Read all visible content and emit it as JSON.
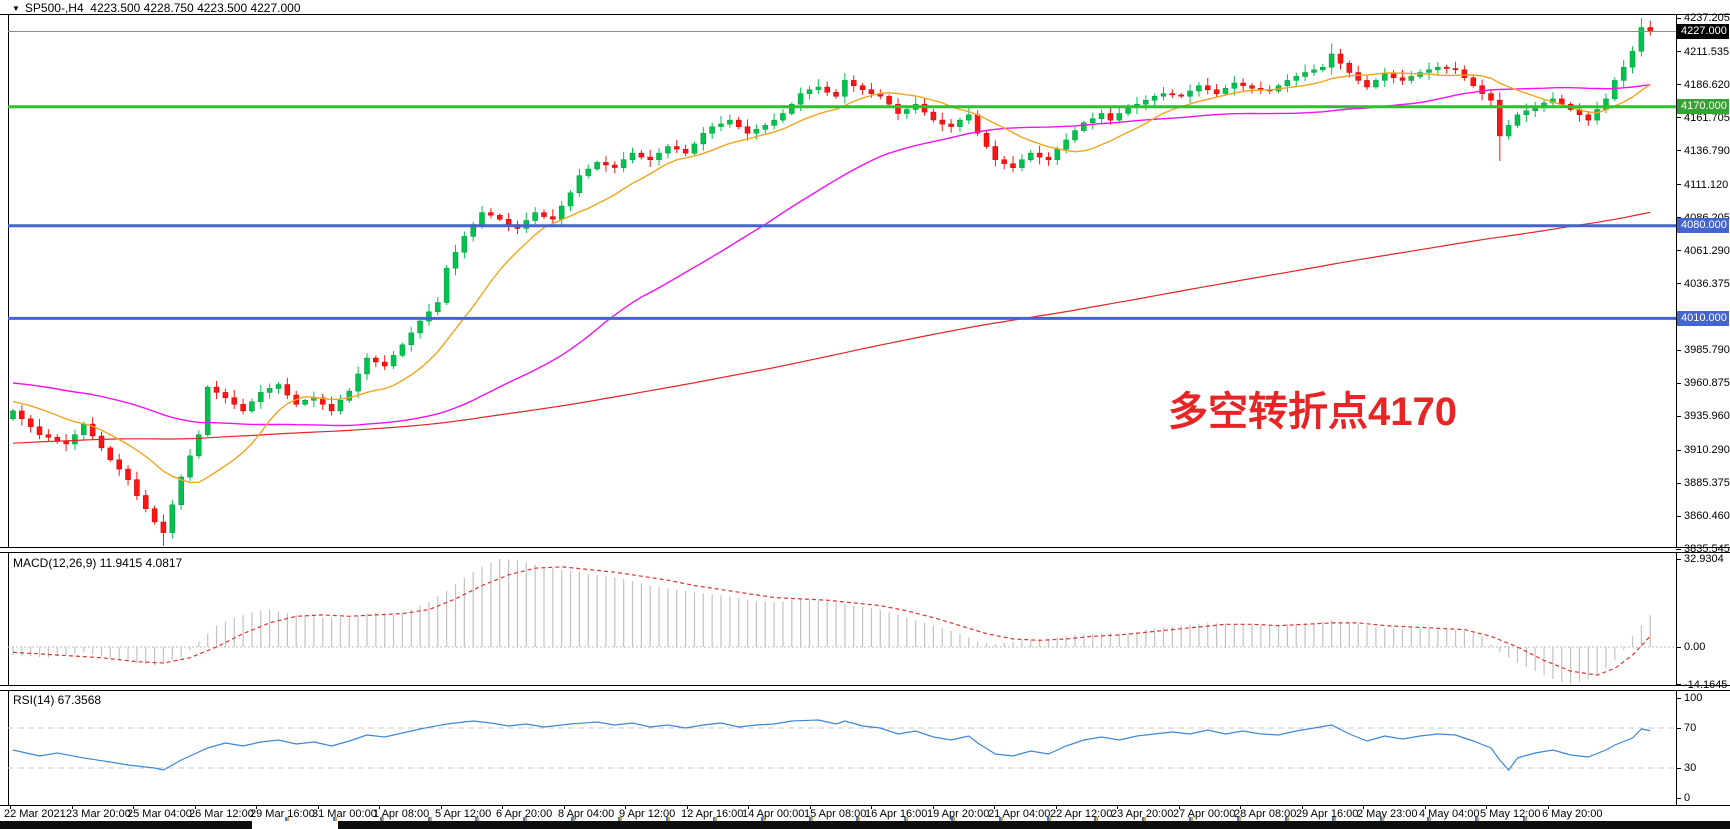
{
  "title": {
    "dropdown_icon": "▼",
    "symbol_period": "SP500-,H4",
    "ohlc": "4223.500 4228.750 4223.500 4227.000"
  },
  "chart_data": {
    "type": "candlestick",
    "symbol": "SP500-",
    "timeframe": "H4",
    "title": "SP500-,H4  4223.500 4228.750 4223.500 4227.000",
    "last_bar": {
      "open": 4223.5,
      "high": 4228.75,
      "low": 4223.5,
      "close": 4227.0
    },
    "y_axis": {
      "top_value": 4237.205,
      "bottom_value": 3835.545,
      "labels": [
        "4237.205",
        "4211.535",
        "4186.620",
        "4161.705",
        "4136.790",
        "4111.120",
        "4086.205",
        "4061.290",
        "4036.375",
        "3985.790",
        "3960.875",
        "3935.960",
        "3910.290",
        "3885.375",
        "3860.460",
        "3835.545"
      ]
    },
    "x_axis": {
      "labels": [
        "22 Mar 2021",
        "23 Mar 20:00",
        "25 Mar 04:00",
        "26 Mar 12:00",
        "29 Mar 16:00",
        "31 Mar 00:00",
        "1 Apr 08:00",
        "5 Apr 12:00",
        "6 Apr 20:00",
        "8 Apr 04:00",
        "9 Apr 12:00",
        "12 Apr 16:00",
        "14 Apr 00:00",
        "15 Apr 08:00",
        "16 Apr 16:00",
        "19 Apr 20:00",
        "21 Apr 04:00",
        "22 Apr 12:00",
        "23 Apr 20:00",
        "27 Apr 00:00",
        "28 Apr 08:00",
        "29 Apr 16:00",
        "2 May 23:00",
        "4 May 04:00",
        "5 May 12:00",
        "6 May 20:00"
      ]
    },
    "hlines": [
      {
        "name": "current-price-line",
        "label": "4227.000",
        "price": 4227.0,
        "line_color": "#8c8c8c",
        "badge_bg": "#000000",
        "badge_fg": "#ffffff",
        "thickness": 1
      },
      {
        "name": "level-4170",
        "label": "4170.000",
        "price": 4170.0,
        "line_color": "#2fbf2f",
        "badge_bg": "#35a335",
        "badge_fg": "#ffffff",
        "thickness": 3
      },
      {
        "name": "level-4080",
        "label": "4080.000",
        "price": 4080.0,
        "line_color": "#4464d0",
        "badge_bg": "#4464d0",
        "badge_fg": "#ffffff",
        "thickness": 3
      },
      {
        "name": "level-4010",
        "label": "4010.000",
        "price": 4010.0,
        "line_color": "#4464d0",
        "badge_bg": "#4464d0",
        "badge_fg": "#ffffff",
        "thickness": 3
      }
    ],
    "annotation": {
      "text": "多空转折点4170",
      "color": "#e62626"
    },
    "candles": {
      "up_color": "#00c24e",
      "up_stroke": "#009a3e",
      "down_color": "#fd1414",
      "down_stroke": "#d40000",
      "closes": [
        3940,
        3934,
        3928,
        3922,
        3920,
        3917,
        3915,
        3922,
        3930,
        3921,
        3912,
        3903,
        3896,
        3888,
        3876,
        3866,
        3856,
        3848,
        3869,
        3890,
        3906,
        3922,
        3958,
        3954,
        3950,
        3945,
        3940,
        3947,
        3954,
        3957,
        3960,
        3952,
        3945,
        3948,
        3950,
        3945,
        3940,
        3948,
        3955,
        3968,
        3980,
        3977,
        3974,
        3982,
        3990,
        3999,
        4008,
        4015,
        4022,
        4048,
        4060,
        4072,
        4081,
        4090,
        4088,
        4085,
        4081,
        4078,
        4084,
        4090,
        4087,
        4085,
        4095,
        4105,
        4118,
        4123,
        4128,
        4126,
        4124,
        4130,
        4135,
        4132,
        4130,
        4135,
        4140,
        4138,
        4135,
        4142,
        4150,
        4155,
        4157,
        4160,
        4155,
        4150,
        4153,
        4156,
        4160,
        4165,
        4172,
        4180,
        4183,
        4185,
        4181,
        4178,
        4190,
        4186,
        4183,
        4180,
        4178,
        4172,
        4165,
        4168,
        4172,
        4166,
        4160,
        4157,
        4155,
        4160,
        4164,
        4150,
        4140,
        4130,
        4127,
        4124,
        4130,
        4135,
        4132,
        4130,
        4138,
        4145,
        4152,
        4158,
        4161,
        4165,
        4160,
        4165,
        4170,
        4172,
        4175,
        4178,
        4180,
        4179,
        4178,
        4182,
        4186,
        4183,
        4180,
        4184,
        4188,
        4186,
        4184,
        4183,
        4182,
        4186,
        4190,
        4193,
        4196,
        4198,
        4200,
        4210,
        4203,
        4196,
        4190,
        4185,
        4190,
        4195,
        4192,
        4190,
        4193,
        4196,
        4198,
        4200,
        4199,
        4198,
        4192,
        4186,
        4180,
        4175,
        4148,
        4156,
        4164,
        4167,
        4170,
        4173,
        4176,
        4172,
        4168,
        4164,
        4160,
        4168,
        4176,
        4190,
        4200,
        4212,
        4230,
        4227
      ],
      "wick_overrides": {
        "17": {
          "low": 3838
        },
        "149": {
          "high": 4218
        },
        "168": {
          "low": 4129
        },
        "184": {
          "high": 4237.2
        }
      }
    },
    "moving_averages": [
      {
        "name": "fast-ma",
        "period": 12,
        "color": "#f2a51d"
      },
      {
        "name": "mid-ma",
        "period": 50,
        "color": "#f211f2"
      },
      {
        "name": "slow-ma",
        "period": 200,
        "color": "#e42525"
      }
    ],
    "prehistory_anchors": [
      [
        0,
        3860
      ],
      [
        40,
        3885
      ],
      [
        80,
        3900
      ],
      [
        100,
        3895
      ],
      [
        130,
        3935
      ],
      [
        160,
        3980
      ],
      [
        180,
        3955
      ],
      [
        199,
        3945
      ]
    ],
    "macd": {
      "label": "MACD(12,26,9) 11.9415 4.0817",
      "current": 11.9415,
      "signal_current": 4.0817,
      "axis_labels": [
        "32.9304",
        "0.00",
        "-14.1645"
      ],
      "axis_values": [
        32.9304,
        0,
        -14.1645
      ],
      "hist_color": "#c2c2c2",
      "signal_color": "#e03232",
      "hist_anchors": [
        [
          0,
          -3
        ],
        [
          4,
          -4
        ],
        [
          8,
          -2
        ],
        [
          12,
          -5
        ],
        [
          16,
          -7
        ],
        [
          19,
          -4
        ],
        [
          21,
          2
        ],
        [
          23,
          8
        ],
        [
          25,
          11
        ],
        [
          27,
          13
        ],
        [
          29,
          14
        ],
        [
          32,
          12
        ],
        [
          35,
          11
        ],
        [
          38,
          11
        ],
        [
          41,
          13
        ],
        [
          43,
          12
        ],
        [
          45,
          14
        ],
        [
          47,
          17
        ],
        [
          49,
          21
        ],
        [
          51,
          26
        ],
        [
          53,
          30
        ],
        [
          55,
          33
        ],
        [
          57,
          32.5
        ],
        [
          60,
          30
        ],
        [
          63,
          28.5
        ],
        [
          66,
          27
        ],
        [
          69,
          25.5
        ],
        [
          72,
          23
        ],
        [
          75,
          21.5
        ],
        [
          78,
          20
        ],
        [
          81,
          19
        ],
        [
          84,
          17
        ],
        [
          87,
          17
        ],
        [
          89,
          18
        ],
        [
          92,
          17
        ],
        [
          95,
          15.5
        ],
        [
          98,
          14
        ],
        [
          101,
          11
        ],
        [
          104,
          8
        ],
        [
          107,
          5
        ],
        [
          109,
          2
        ],
        [
          111,
          1
        ],
        [
          114,
          2.5
        ],
        [
          117,
          3
        ],
        [
          120,
          4.5
        ],
        [
          123,
          5
        ],
        [
          126,
          5
        ],
        [
          129,
          7
        ],
        [
          132,
          8
        ],
        [
          135,
          9
        ],
        [
          138,
          8.5
        ],
        [
          141,
          8
        ],
        [
          144,
          8.5
        ],
        [
          147,
          9
        ],
        [
          149,
          10
        ],
        [
          152,
          8.5
        ],
        [
          155,
          7
        ],
        [
          158,
          7
        ],
        [
          161,
          7
        ],
        [
          164,
          6
        ],
        [
          166,
          4
        ],
        [
          168,
          -2
        ],
        [
          170,
          -6
        ],
        [
          172,
          -9
        ],
        [
          174,
          -12
        ],
        [
          176,
          -14
        ],
        [
          178,
          -12
        ],
        [
          180,
          -8
        ],
        [
          181,
          -5
        ],
        [
          182,
          -1
        ],
        [
          183,
          4
        ],
        [
          184,
          8
        ],
        [
          185,
          11.94
        ]
      ],
      "signal_anchors": [
        [
          0,
          -2
        ],
        [
          5,
          -3
        ],
        [
          10,
          -4
        ],
        [
          14,
          -5.5
        ],
        [
          17,
          -6
        ],
        [
          20,
          -4
        ],
        [
          23,
          0
        ],
        [
          26,
          5
        ],
        [
          29,
          9
        ],
        [
          32,
          11.5
        ],
        [
          35,
          12
        ],
        [
          38,
          11.5
        ],
        [
          41,
          12
        ],
        [
          44,
          12.5
        ],
        [
          47,
          14
        ],
        [
          50,
          18
        ],
        [
          53,
          23
        ],
        [
          56,
          27
        ],
        [
          59,
          29.5
        ],
        [
          62,
          30
        ],
        [
          65,
          29
        ],
        [
          68,
          28
        ],
        [
          71,
          26.5
        ],
        [
          74,
          25
        ],
        [
          77,
          23
        ],
        [
          80,
          21.5
        ],
        [
          83,
          20
        ],
        [
          86,
          18.5
        ],
        [
          89,
          18
        ],
        [
          92,
          17.5
        ],
        [
          95,
          16.5
        ],
        [
          98,
          15.5
        ],
        [
          101,
          13.5
        ],
        [
          104,
          11
        ],
        [
          107,
          8
        ],
        [
          110,
          5
        ],
        [
          113,
          3
        ],
        [
          116,
          2.5
        ],
        [
          119,
          3
        ],
        [
          122,
          4
        ],
        [
          125,
          4.5
        ],
        [
          128,
          5.5
        ],
        [
          131,
          6.5
        ],
        [
          134,
          7.5
        ],
        [
          137,
          8.5
        ],
        [
          140,
          8.5
        ],
        [
          143,
          8
        ],
        [
          146,
          8.5
        ],
        [
          149,
          9
        ],
        [
          152,
          9
        ],
        [
          155,
          8
        ],
        [
          158,
          7.5
        ],
        [
          161,
          7
        ],
        [
          164,
          6.5
        ],
        [
          167,
          4
        ],
        [
          170,
          0
        ],
        [
          173,
          -5
        ],
        [
          176,
          -9
        ],
        [
          179,
          -10.5
        ],
        [
          181,
          -8
        ],
        [
          183,
          -3
        ],
        [
          184,
          0.5
        ],
        [
          185,
          4.08
        ]
      ]
    },
    "rsi": {
      "label": "RSI(14) 67.3568",
      "current": 67.3568,
      "axis_labels": [
        "100",
        "70",
        "30",
        "0"
      ],
      "axis_values": [
        100,
        70,
        30,
        0
      ],
      "levels": [
        70,
        30
      ],
      "line_color": "#3d87d8",
      "level_color": "#c8c8c8",
      "anchors": [
        [
          0,
          48
        ],
        [
          3,
          42
        ],
        [
          5,
          45
        ],
        [
          8,
          40
        ],
        [
          11,
          36
        ],
        [
          13,
          33
        ],
        [
          16,
          30
        ],
        [
          17,
          28
        ],
        [
          19,
          38
        ],
        [
          22,
          50
        ],
        [
          24,
          55
        ],
        [
          26,
          52
        ],
        [
          28,
          56
        ],
        [
          30,
          58
        ],
        [
          32,
          54
        ],
        [
          34,
          56
        ],
        [
          36,
          52
        ],
        [
          38,
          57
        ],
        [
          40,
          63
        ],
        [
          42,
          61
        ],
        [
          44,
          65
        ],
        [
          46,
          69
        ],
        [
          49,
          74
        ],
        [
          52,
          77
        ],
        [
          54,
          75
        ],
        [
          56,
          72
        ],
        [
          58,
          74
        ],
        [
          60,
          71
        ],
        [
          63,
          74
        ],
        [
          66,
          76
        ],
        [
          68,
          73
        ],
        [
          70,
          75
        ],
        [
          72,
          71
        ],
        [
          74,
          73
        ],
        [
          76,
          70
        ],
        [
          78,
          73
        ],
        [
          80,
          75
        ],
        [
          82,
          71
        ],
        [
          84,
          73
        ],
        [
          86,
          74
        ],
        [
          88,
          77
        ],
        [
          91,
          78
        ],
        [
          93,
          74
        ],
        [
          94,
          77
        ],
        [
          96,
          72
        ],
        [
          98,
          70
        ],
        [
          100,
          64
        ],
        [
          102,
          67
        ],
        [
          104,
          61
        ],
        [
          106,
          58
        ],
        [
          108,
          62
        ],
        [
          109,
          55
        ],
        [
          111,
          44
        ],
        [
          113,
          42
        ],
        [
          115,
          47
        ],
        [
          117,
          44
        ],
        [
          119,
          52
        ],
        [
          121,
          58
        ],
        [
          123,
          61
        ],
        [
          125,
          58
        ],
        [
          127,
          62
        ],
        [
          129,
          64
        ],
        [
          131,
          66
        ],
        [
          133,
          64
        ],
        [
          135,
          68
        ],
        [
          137,
          64
        ],
        [
          139,
          67
        ],
        [
          141,
          64
        ],
        [
          143,
          63
        ],
        [
          145,
          67
        ],
        [
          147,
          70
        ],
        [
          149,
          73
        ],
        [
          151,
          64
        ],
        [
          153,
          57
        ],
        [
          155,
          62
        ],
        [
          157,
          59
        ],
        [
          159,
          62
        ],
        [
          161,
          64
        ],
        [
          163,
          63
        ],
        [
          165,
          57
        ],
        [
          167,
          50
        ],
        [
          168,
          38
        ],
        [
          169,
          28
        ],
        [
          170,
          40
        ],
        [
          172,
          45
        ],
        [
          174,
          48
        ],
        [
          176,
          43
        ],
        [
          178,
          41
        ],
        [
          180,
          48
        ],
        [
          181,
          53
        ],
        [
          183,
          60
        ],
        [
          184,
          69
        ],
        [
          185,
          67.36
        ]
      ]
    }
  },
  "bottom": {
    "scrollbar_track_color": "#0e0e0e",
    "scrollbar_thumb_color": "#ffffff",
    "tick_count": 27,
    "tick_colors": [
      "#3f7fd2",
      "#eb9b3c"
    ]
  }
}
